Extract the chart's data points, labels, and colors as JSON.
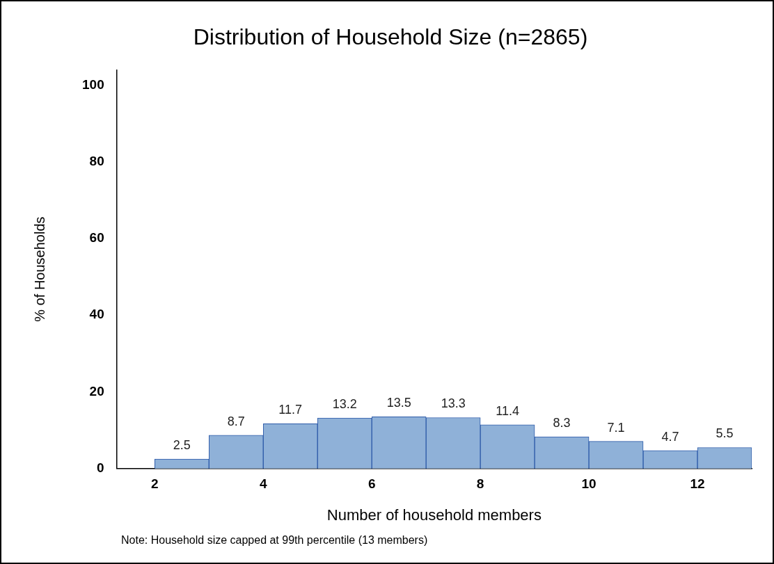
{
  "chart_data": {
    "type": "histogram",
    "title": "Distribution of Household Size (n=2865)",
    "xlabel": "Number of household members",
    "ylabel": "% of Households",
    "bins": [
      2,
      3,
      4,
      5,
      6,
      7,
      8,
      9,
      10,
      11,
      12,
      13
    ],
    "values": [
      2.5,
      8.7,
      11.7,
      13.2,
      13.5,
      13.3,
      11.4,
      8.3,
      7.1,
      4.7,
      5.5
    ],
    "color": "#8fb1d8",
    "xlim": [
      1.3,
      13
    ],
    "xticks": [
      2,
      4,
      6,
      8,
      10,
      12
    ],
    "ylim": [
      0,
      104
    ],
    "yticks": [
      0,
      20,
      40,
      60,
      80,
      100
    ],
    "grid": false,
    "legend": false,
    "data_labels": true,
    "annotations": [
      "Note: Household size capped at 99th percentile (13 members)"
    ]
  }
}
